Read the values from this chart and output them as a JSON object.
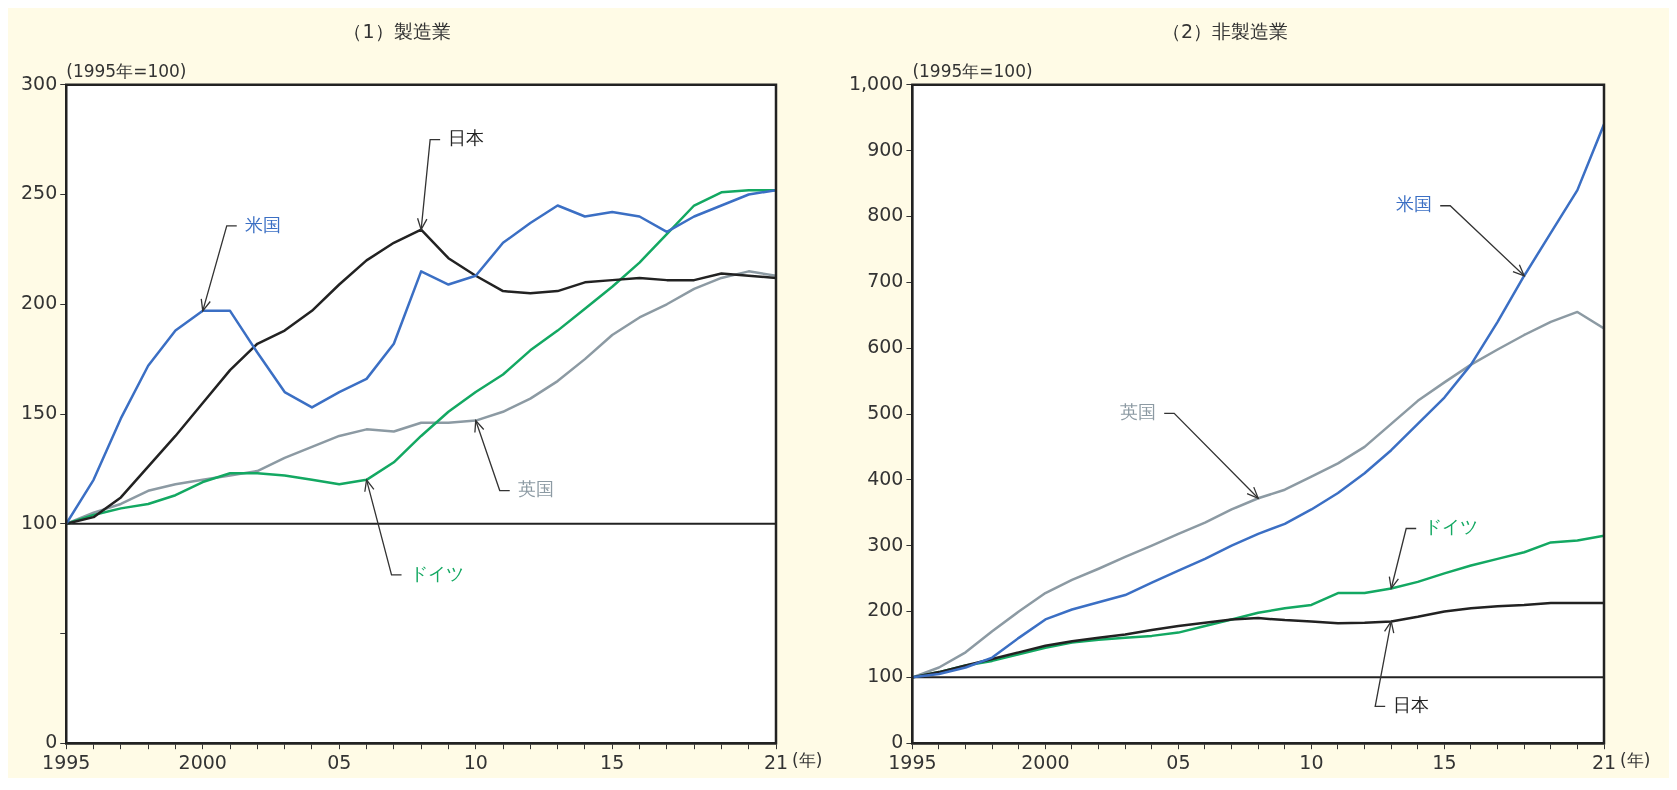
{
  "chart_data": [
    {
      "type": "line",
      "title": "（1）製造業",
      "ylabel": "(1995年=100)",
      "xlabel": "(年)",
      "x": [
        1995,
        1996,
        1997,
        1998,
        1999,
        2000,
        2001,
        2002,
        2003,
        2004,
        2005,
        2006,
        2007,
        2008,
        2009,
        2010,
        2011,
        2012,
        2013,
        2014,
        2015,
        2016,
        2017,
        2018,
        2019,
        2020,
        2021
      ],
      "xlim": [
        1995,
        2021
      ],
      "xticks": [
        {
          "value": 1995,
          "label": "1995"
        },
        {
          "value": 1996,
          "label": null
        },
        {
          "value": 1997,
          "label": null
        },
        {
          "value": 1998,
          "label": null
        },
        {
          "value": 1999,
          "label": null
        },
        {
          "value": 2000,
          "label": "2000"
        },
        {
          "value": 2001,
          "label": null
        },
        {
          "value": 2002,
          "label": null
        },
        {
          "value": 2003,
          "label": null
        },
        {
          "value": 2004,
          "label": null
        },
        {
          "value": 2005,
          "label": "05"
        },
        {
          "value": 2006,
          "label": null
        },
        {
          "value": 2007,
          "label": null
        },
        {
          "value": 2008,
          "label": null
        },
        {
          "value": 2009,
          "label": null
        },
        {
          "value": 2010,
          "label": "10"
        },
        {
          "value": 2011,
          "label": null
        },
        {
          "value": 2012,
          "label": null
        },
        {
          "value": 2013,
          "label": null
        },
        {
          "value": 2014,
          "label": null
        },
        {
          "value": 2015,
          "label": "15"
        },
        {
          "value": 2016,
          "label": null
        },
        {
          "value": 2017,
          "label": null
        },
        {
          "value": 2018,
          "label": null
        },
        {
          "value": 2019,
          "label": null
        },
        {
          "value": 2020,
          "label": null
        },
        {
          "value": 2021,
          "label": "21"
        }
      ],
      "ylim": [
        0,
        300
      ],
      "yticks": [
        0,
        {
          "value": 50,
          "label": null
        },
        100,
        150,
        200,
        250,
        300
      ],
      "ref_lines": [
        {
          "axis": "y",
          "value": 100,
          "color": "#222222"
        }
      ],
      "series": [
        {
          "name": "米国",
          "color": "#3b6fc4",
          "values": [
            100,
            120,
            148,
            172,
            188,
            197,
            197,
            178,
            160,
            153,
            160,
            166,
            182,
            215,
            209,
            213,
            228,
            237,
            245,
            240,
            242,
            240,
            233,
            240,
            245,
            250,
            252
          ]
        },
        {
          "name": "日本",
          "color": "#222222",
          "values": [
            100,
            103,
            112,
            126,
            140,
            155,
            170,
            182,
            188,
            197,
            209,
            220,
            228,
            234,
            221,
            213,
            206,
            205,
            206,
            210,
            211,
            212,
            211,
            211,
            214,
            213,
            212
          ]
        },
        {
          "name": "ドイツ",
          "color": "#13a862",
          "values": [
            100,
            104,
            107,
            109,
            113,
            119,
            123,
            123,
            122,
            120,
            118,
            120,
            128,
            140,
            151,
            160,
            168,
            179,
            188,
            198,
            208,
            219,
            232,
            245,
            251,
            252,
            252
          ]
        },
        {
          "name": "英国",
          "color": "#8c9aa3",
          "values": [
            100,
            105,
            109,
            115,
            118,
            120,
            122,
            124,
            130,
            135,
            140,
            143,
            142,
            146,
            146,
            147,
            151,
            157,
            165,
            175,
            186,
            194,
            200,
            207,
            212,
            215,
            213
          ]
        }
      ]
    },
    {
      "type": "line",
      "title": "（2）非製造業",
      "ylabel": "(1995年=100)",
      "xlabel": "(年)",
      "x": [
        1995,
        1996,
        1997,
        1998,
        1999,
        2000,
        2001,
        2002,
        2003,
        2004,
        2005,
        2006,
        2007,
        2008,
        2009,
        2010,
        2011,
        2012,
        2013,
        2014,
        2015,
        2016,
        2017,
        2018,
        2019,
        2020,
        2021
      ],
      "xlim": [
        1995,
        2021
      ],
      "xticks": [
        {
          "value": 1995,
          "label": "1995"
        },
        {
          "value": 1996,
          "label": null
        },
        {
          "value": 1997,
          "label": null
        },
        {
          "value": 1998,
          "label": null
        },
        {
          "value": 1999,
          "label": null
        },
        {
          "value": 2000,
          "label": "2000"
        },
        {
          "value": 2001,
          "label": null
        },
        {
          "value": 2002,
          "label": null
        },
        {
          "value": 2003,
          "label": null
        },
        {
          "value": 2004,
          "label": null
        },
        {
          "value": 2005,
          "label": "05"
        },
        {
          "value": 2006,
          "label": null
        },
        {
          "value": 2007,
          "label": null
        },
        {
          "value": 2008,
          "label": null
        },
        {
          "value": 2009,
          "label": null
        },
        {
          "value": 2010,
          "label": "10"
        },
        {
          "value": 2011,
          "label": null
        },
        {
          "value": 2012,
          "label": null
        },
        {
          "value": 2013,
          "label": null
        },
        {
          "value": 2014,
          "label": null
        },
        {
          "value": 2015,
          "label": "15"
        },
        {
          "value": 2016,
          "label": null
        },
        {
          "value": 2017,
          "label": null
        },
        {
          "value": 2018,
          "label": null
        },
        {
          "value": 2019,
          "label": null
        },
        {
          "value": 2020,
          "label": null
        },
        {
          "value": 2021,
          "label": "21"
        }
      ],
      "ylim": [
        0,
        1000
      ],
      "yticks": [
        0,
        100,
        200,
        300,
        400,
        500,
        600,
        700,
        800,
        900,
        {
          "value": 1000,
          "label": "1,000"
        }
      ],
      "ref_lines": [
        {
          "axis": "y",
          "value": 100,
          "color": "#222222"
        }
      ],
      "series": [
        {
          "name": "米国",
          "color": "#3b6fc4",
          "values": [
            100,
            105,
            115,
            130,
            160,
            188,
            203,
            214,
            225,
            244,
            262,
            280,
            300,
            318,
            333,
            355,
            380,
            410,
            445,
            485,
            525,
            575,
            640,
            710,
            775,
            840,
            940
          ]
        },
        {
          "name": "日本",
          "color": "#222222",
          "values": [
            100,
            108,
            118,
            128,
            138,
            148,
            155,
            160,
            165,
            172,
            178,
            183,
            188,
            190,
            187,
            185,
            182,
            183,
            185,
            192,
            200,
            205,
            208,
            210,
            213,
            213,
            213
          ]
        },
        {
          "name": "ドイツ",
          "color": "#13a862",
          "values": [
            100,
            108,
            118,
            125,
            135,
            145,
            153,
            157,
            160,
            163,
            168,
            178,
            188,
            198,
            205,
            210,
            228,
            228,
            235,
            245,
            258,
            270,
            280,
            290,
            305,
            308,
            315
          ]
        },
        {
          "name": "英国",
          "color": "#8c9aa3",
          "values": [
            100,
            115,
            138,
            170,
            200,
            228,
            248,
            265,
            283,
            300,
            318,
            335,
            355,
            372,
            385,
            405,
            425,
            450,
            485,
            520,
            548,
            575,
            598,
            620,
            640,
            655,
            630
          ]
        }
      ]
    }
  ]
}
